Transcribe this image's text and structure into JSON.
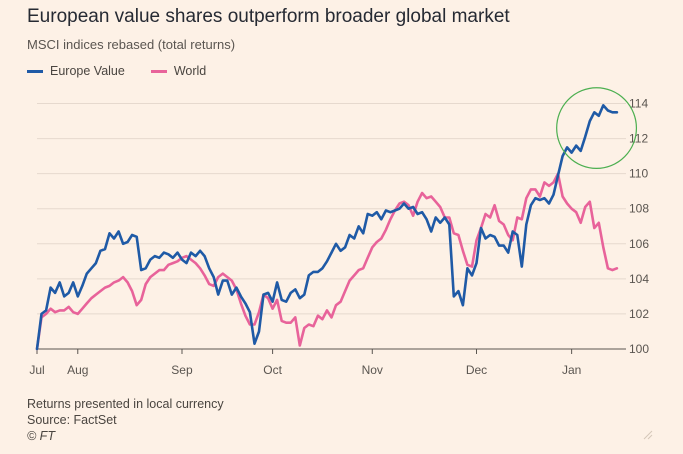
{
  "title": "European value shares outperform broader global market",
  "subtitle": "MSCI indices rebased (total returns)",
  "footnote": "Returns presented in local currency",
  "source": "Source: FactSet",
  "copyright": "© FT",
  "colors": {
    "background": "#fdf1e6",
    "europe_value": "#1f5aa6",
    "world": "#e8639a",
    "annotation": "#4caf50",
    "grid": "#e6d9ce"
  },
  "chart_data": {
    "type": "line",
    "ylim": [
      100,
      115
    ],
    "yticks": [
      100,
      102,
      104,
      106,
      108,
      110,
      112,
      114
    ],
    "y_tick_labels": [
      "100",
      "102",
      "104",
      "106",
      "108",
      "110",
      "112",
      "114"
    ],
    "xlim": [
      0,
      130
    ],
    "x_ticks": [
      {
        "label": "Jul",
        "x": 0
      },
      {
        "label": "Aug",
        "x": 9
      },
      {
        "label": "Sep",
        "x": 32
      },
      {
        "label": "Oct",
        "x": 52
      },
      {
        "label": "Nov",
        "x": 74
      },
      {
        "label": "Dec",
        "x": 97
      },
      {
        "label": "Jan",
        "x": 118
      }
    ],
    "legend_position": "top-left",
    "grid": true,
    "annotation": {
      "type": "ellipse",
      "x_center": 123.5,
      "y_center": 112.6,
      "x_radius": 8.8,
      "y_radius": 2.3
    },
    "series": [
      {
        "name": "Europe Value",
        "x": [
          0,
          1,
          2,
          3,
          4,
          5,
          6,
          7,
          8,
          9,
          10,
          11,
          12,
          13,
          14,
          15,
          16,
          17,
          18,
          19,
          20,
          21,
          22,
          23,
          24,
          25,
          26,
          27,
          28,
          29,
          30,
          31,
          32,
          33,
          34,
          35,
          36,
          37,
          38,
          39,
          40,
          41,
          42,
          43,
          44,
          45,
          46,
          47,
          48,
          49,
          50,
          51,
          52,
          53,
          54,
          55,
          56,
          57,
          58,
          59,
          60,
          61,
          62,
          63,
          64,
          65,
          66,
          67,
          68,
          69,
          70,
          71,
          72,
          73,
          74,
          75,
          76,
          77,
          78,
          79,
          80,
          81,
          82,
          83,
          84,
          85,
          86,
          87,
          88,
          89,
          90,
          91,
          92,
          93,
          94,
          95,
          96,
          97,
          98,
          99,
          100,
          101,
          102,
          103,
          104,
          105,
          106,
          107,
          108,
          109,
          110,
          111,
          112,
          113,
          114,
          115,
          116,
          117,
          118,
          119,
          120,
          121,
          122,
          123,
          124,
          125,
          126,
          127,
          128
        ],
        "values": [
          100,
          102,
          102.2,
          103.5,
          103.2,
          103.8,
          103,
          103.2,
          103.8,
          103,
          103.6,
          104.3,
          104.6,
          104.9,
          105.6,
          105.7,
          106.6,
          106.3,
          106.7,
          106,
          106.1,
          106.5,
          106.4,
          104.5,
          104.6,
          105.1,
          105.3,
          105.2,
          105.5,
          105.4,
          105.2,
          105.5,
          105.1,
          104.9,
          105.5,
          105.3,
          105.6,
          105.3,
          104.6,
          104.1,
          103.1,
          103.9,
          103.9,
          103.1,
          103.5,
          103,
          102.6,
          102.1,
          100.3,
          101,
          103.1,
          103.2,
          102.7,
          103.8,
          102.8,
          102.7,
          103.2,
          103.4,
          102.9,
          103.1,
          104.2,
          104.4,
          104.4,
          104.6,
          105,
          105.5,
          106,
          105.6,
          105.8,
          106.5,
          106.3,
          107,
          106.6,
          107.7,
          107.6,
          107.8,
          107.4,
          107.9,
          107.8,
          107.9,
          108,
          108.3,
          108,
          108.1,
          107.7,
          107.8,
          107.4,
          106.7,
          107.5,
          107.2,
          107.5,
          107.1,
          103,
          103.3,
          102.5,
          104.6,
          104.2,
          104.9,
          106.9,
          106.3,
          106.5,
          106.4,
          105.9,
          105.9,
          105.5,
          106.7,
          106.5,
          104.7,
          107.1,
          108.2,
          108.6,
          108.5,
          108.6,
          108.3,
          108.8,
          109.9,
          111,
          111.5,
          111.2,
          111.6,
          111.3,
          112.1,
          113,
          113.5,
          113.3,
          113.9,
          113.6,
          113.5,
          113.5
        ]
      },
      {
        "name": "World",
        "x": [
          0,
          1,
          2,
          3,
          4,
          5,
          6,
          7,
          8,
          9,
          10,
          11,
          12,
          13,
          14,
          15,
          16,
          17,
          18,
          19,
          20,
          21,
          22,
          23,
          24,
          25,
          26,
          27,
          28,
          29,
          30,
          31,
          32,
          33,
          34,
          35,
          36,
          37,
          38,
          39,
          40,
          41,
          42,
          43,
          44,
          45,
          46,
          47,
          48,
          49,
          50,
          51,
          52,
          53,
          54,
          55,
          56,
          57,
          58,
          59,
          60,
          61,
          62,
          63,
          64,
          65,
          66,
          67,
          68,
          69,
          70,
          71,
          72,
          73,
          74,
          75,
          76,
          77,
          78,
          79,
          80,
          81,
          82,
          83,
          84,
          85,
          86,
          87,
          88,
          89,
          90,
          91,
          92,
          93,
          94,
          95,
          96,
          97,
          98,
          99,
          100,
          101,
          102,
          103,
          104,
          105,
          106,
          107,
          108,
          109,
          110,
          111,
          112,
          113,
          114,
          115,
          116,
          117,
          118,
          119,
          120,
          121,
          122,
          123,
          124,
          125,
          126,
          127,
          128
        ],
        "values": [
          100,
          101.8,
          102,
          102.3,
          102.1,
          102.2,
          102.2,
          102.4,
          102.1,
          102,
          102.3,
          102.6,
          102.9,
          103.1,
          103.3,
          103.5,
          103.6,
          103.8,
          103.9,
          104.1,
          103.8,
          103.3,
          102.5,
          102.8,
          103.7,
          104.1,
          104.3,
          104.5,
          104.5,
          104.8,
          104.9,
          105,
          105.2,
          105.3,
          105.1,
          104.9,
          104.6,
          104.2,
          103.7,
          103.6,
          104.1,
          104.3,
          104.1,
          103.9,
          103.4,
          102.6,
          101.9,
          101.4,
          101.4,
          102.1,
          103.1,
          102.9,
          102.3,
          102.8,
          101.6,
          101.5,
          101.5,
          101.8,
          100.2,
          101.2,
          101.4,
          101.3,
          101.9,
          101.7,
          102.2,
          101.8,
          102.5,
          102.7,
          103.3,
          103.9,
          104.2,
          104.5,
          104.6,
          105.2,
          105.8,
          106.1,
          106.3,
          106.8,
          107.4,
          107.9,
          108.3,
          108.4,
          108.2,
          107.6,
          108.4,
          108.9,
          108.6,
          108.7,
          108.4,
          108.1,
          107.5,
          107.5,
          106.6,
          106.5,
          105.6,
          104.8,
          104.7,
          106.2,
          106.9,
          107.7,
          107.5,
          108.2,
          107.3,
          107.1,
          106.5,
          106.2,
          107.5,
          107.4,
          108.6,
          109.1,
          109.1,
          108.7,
          109.5,
          109.3,
          109.5,
          110,
          108.7,
          108.3,
          108,
          107.8,
          107.2,
          108.1,
          108.4,
          106.9,
          107.2,
          105.8,
          104.6,
          104.5,
          104.6
        ]
      }
    ]
  }
}
